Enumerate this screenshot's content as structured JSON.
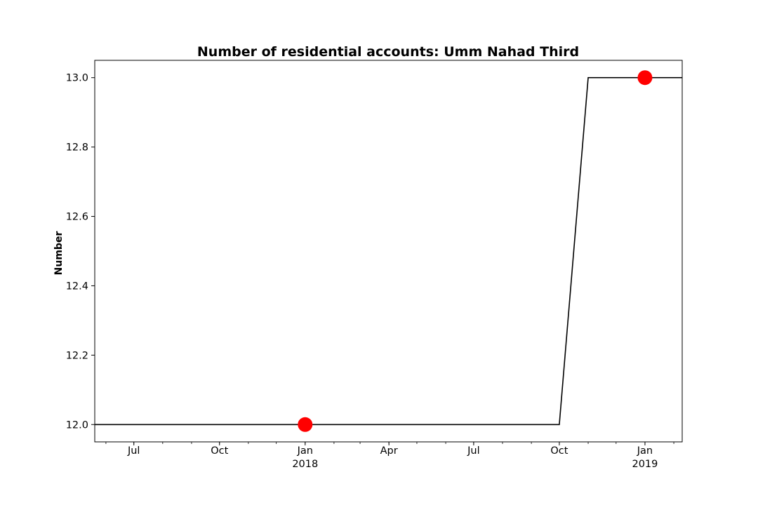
{
  "chart_data": {
    "type": "line",
    "title": "Number of residential accounts: Umm Nahad Third",
    "xlabel": "",
    "ylabel": "Number",
    "xlim": [
      "2017-05-20",
      "2019-02-10"
    ],
    "ylim": [
      11.95,
      13.05
    ],
    "y_ticks": [
      12.0,
      12.2,
      12.4,
      12.6,
      12.8,
      13.0
    ],
    "y_tick_labels": [
      "12.0",
      "12.2",
      "12.4",
      "12.6",
      "12.8",
      "13.0"
    ],
    "x_ticks": [
      {
        "date": "2017-07-01",
        "label": "Jul",
        "sublabel": ""
      },
      {
        "date": "2017-10-01",
        "label": "Oct",
        "sublabel": ""
      },
      {
        "date": "2018-01-01",
        "label": "Jan",
        "sublabel": "2018"
      },
      {
        "date": "2018-04-01",
        "label": "Apr",
        "sublabel": ""
      },
      {
        "date": "2018-07-01",
        "label": "Jul",
        "sublabel": ""
      },
      {
        "date": "2018-10-01",
        "label": "Oct",
        "sublabel": ""
      },
      {
        "date": "2019-01-01",
        "label": "Jan",
        "sublabel": "2019"
      }
    ],
    "grid": false,
    "series": [
      {
        "color": "#000000",
        "points": [
          {
            "x": "2017-05-20",
            "y": 12
          },
          {
            "x": "2018-10-01",
            "y": 12
          },
          {
            "x": "2018-11-01",
            "y": 13
          },
          {
            "x": "2019-02-10",
            "y": 13
          }
        ]
      }
    ],
    "markers": [
      {
        "x": "2018-01-01",
        "y": 12,
        "color": "#ff0000"
      },
      {
        "x": "2019-01-01",
        "y": 13,
        "color": "#ff0000"
      }
    ]
  }
}
